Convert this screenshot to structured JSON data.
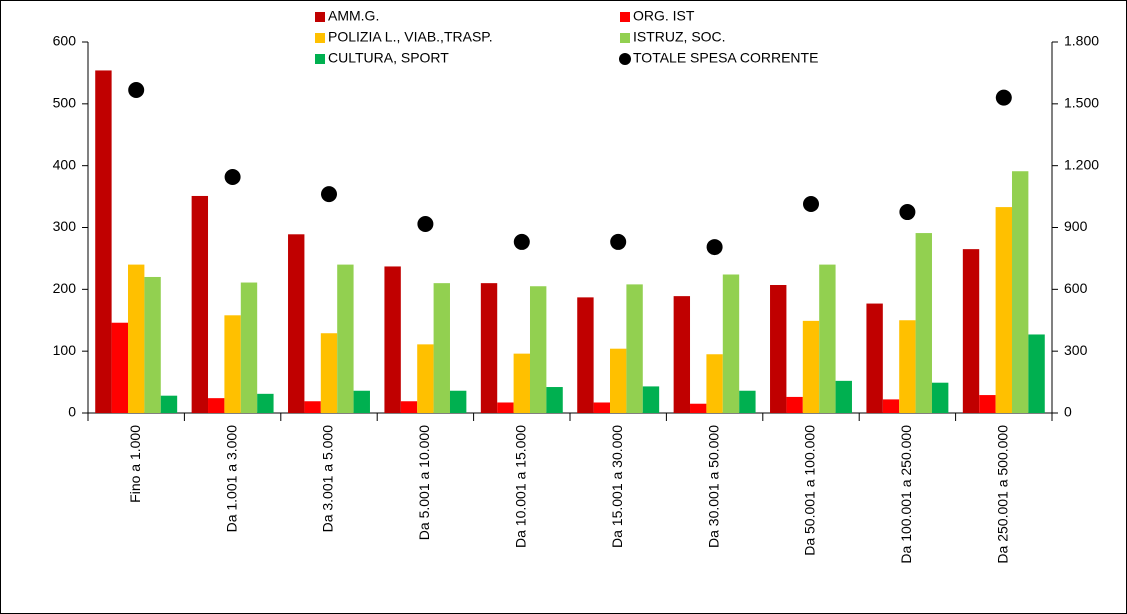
{
  "chart_data": {
    "type": "bar",
    "categories": [
      "Fino a 1.000",
      "Da 1.001 a 3.000",
      "Da 3.001 a 5.000",
      "Da 5.001 a 10.000",
      "Da 10.001 a 15.000",
      "Da 15.001 a 30.000",
      "Da 30.001 a 50.000",
      "Da 50.001 a 100.000",
      "Da 100.001 a 250.000",
      "Da 250.001 a 500.000"
    ],
    "series": [
      {
        "name": "AMM.G.",
        "color": "#c00000",
        "values": [
          554,
          351,
          289,
          237,
          210,
          187,
          189,
          207,
          177,
          265
        ]
      },
      {
        "name": "ORG. IST",
        "color": "#ff0000",
        "values": [
          146,
          24,
          19,
          19,
          17,
          17,
          15,
          26,
          22,
          29
        ]
      },
      {
        "name": "POLIZIA L., VIAB.,TRASP.",
        "color": "#ffc000",
        "values": [
          240,
          158,
          129,
          111,
          96,
          104,
          95,
          149,
          150,
          333
        ]
      },
      {
        "name": "ISTRUZ, SOC.",
        "color": "#92d050",
        "values": [
          220,
          211,
          240,
          210,
          205,
          208,
          224,
          240,
          291,
          391
        ]
      },
      {
        "name": "CULTURA, SPORT",
        "color": "#00b050",
        "values": [
          28,
          31,
          36,
          36,
          42,
          43,
          36,
          52,
          49,
          127
        ]
      },
      {
        "name": "TOTALE SPESA CORRENTE",
        "color": "#000000",
        "type": "scatter",
        "axis": "y2",
        "values": [
          1567,
          1145,
          1062,
          917,
          830,
          830,
          805,
          1014,
          975,
          1530
        ]
      }
    ],
    "ylim": [
      0,
      600
    ],
    "yticks": [
      0,
      100,
      200,
      300,
      400,
      500,
      600
    ],
    "y2lim": [
      0,
      1800
    ],
    "y2ticks": [
      0,
      300,
      600,
      900,
      {
        "value": 1200,
        "label": "1.200"
      },
      {
        "value": 1500,
        "label": "1.500"
      },
      {
        "value": 1800,
        "label": "1.800"
      }
    ],
    "grid": false
  }
}
